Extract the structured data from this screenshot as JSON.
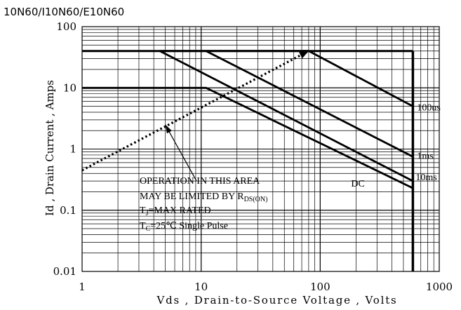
{
  "chart_data": {
    "type": "line",
    "title": "10N60/I10N60/E10N60",
    "xlabel": "Vds , Drain-to-Source Voltage , Volts",
    "ylabel": "Id , Drain Current , Amps",
    "x_scale": "log",
    "y_scale": "log",
    "xlim": [
      1,
      1000
    ],
    "ylim": [
      0.01,
      100
    ],
    "x_ticks": [
      {
        "value": 1,
        "label": "1"
      },
      {
        "value": 10,
        "label": "10"
      },
      {
        "value": 100,
        "label": "100"
      },
      {
        "value": 1000,
        "label": "1000"
      }
    ],
    "y_ticks": [
      {
        "value": 100,
        "label": "100"
      },
      {
        "value": 10,
        "label": "10"
      },
      {
        "value": 1,
        "label": "1"
      },
      {
        "value": 0.1,
        "label": "0.1"
      },
      {
        "value": 0.01,
        "label": "0.01"
      }
    ],
    "grid": true,
    "series": [
      {
        "name": "100us",
        "points": [
          [
            4.5,
            40
          ],
          [
            80,
            40
          ],
          [
            600,
            5
          ]
        ]
      },
      {
        "name": "1ms",
        "points": [
          [
            11,
            40
          ],
          [
            600,
            0.75
          ]
        ]
      },
      {
        "name": "10ms",
        "points": [
          [
            4.5,
            40
          ],
          [
            600,
            0.3
          ]
        ]
      },
      {
        "name": "DC",
        "points": [
          [
            1,
            10
          ],
          [
            11,
            10
          ],
          [
            600,
            0.23
          ]
        ]
      }
    ],
    "current_limit": {
      "points": [
        [
          1,
          40
        ],
        [
          600,
          40
        ]
      ]
    },
    "voltage_limit": {
      "points": [
        [
          600,
          40
        ],
        [
          600,
          0.01
        ]
      ]
    },
    "rds_on_limit": {
      "points": [
        [
          1,
          0.45
        ],
        [
          80,
          40
        ]
      ]
    },
    "annotation": {
      "lines": [
        "OPERATION IN THIS AREA",
        "MAY BE LIMITED BY R",
        "T",
        "=MAX RATED",
        "T",
        "=25℃  Single Pulse"
      ],
      "sub_rds": "DS(ON)",
      "sub_tj": "J",
      "sub_tc": "C",
      "arrow_target": [
        5,
        2.5
      ]
    }
  }
}
